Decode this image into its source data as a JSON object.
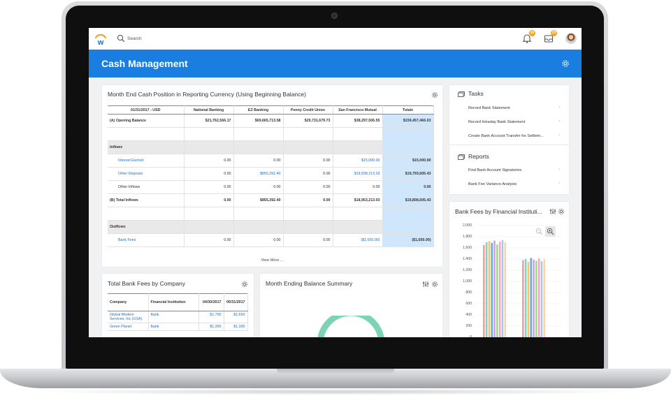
{
  "topbar": {
    "search_placeholder": "Search",
    "notifications_count": "10",
    "inbox_count": "23"
  },
  "header": {
    "title": "Cash Management"
  },
  "colors": {
    "accent": "#1a7de0",
    "total_column": "#cfe6fb",
    "link": "#1a6fd0",
    "donut": "#7dd3b6"
  },
  "cash_position": {
    "title": "Month End Cash Position in Reporting Currency (Using Beginning Balance)",
    "columns": [
      "01/31/2017 - USD",
      "National Banking",
      "EZ Banking",
      "Penny Credit Union",
      "San Francisco Mutual",
      "Totals"
    ],
    "rows": {
      "opening": {
        "label": "(A) Opening Balance",
        "values": [
          "$21,762,566.17",
          "$69,665,713.58",
          "$29,731,679.73",
          "$38,297,506.55",
          "$159,457,466.03"
        ]
      },
      "inflows_header": "Inflows",
      "interest": {
        "label": "Interest Earned",
        "values": [
          "0.00",
          "0.00",
          "0.00",
          "$15,000.00",
          "$15,000.00"
        ]
      },
      "other_deposits": {
        "label": "Other Deposits",
        "values": [
          "0.00",
          "$855,392.40",
          "0.00",
          "$18,938,213.03",
          "$19,793,605.43"
        ]
      },
      "other_inflows": {
        "label": "Other Inflows",
        "values": [
          "0.00",
          "0.00",
          "0.00",
          "0.00",
          "0.00"
        ]
      },
      "total_inflows": {
        "label": "(B) Total Inflows",
        "values": [
          "0.00",
          "$855,392.40",
          "0.00",
          "$18,953,213.03",
          "$19,808,605.43"
        ]
      },
      "outflows_header": "Outflows",
      "bank_fees": {
        "label": "Bank Fees",
        "values": [
          "0.00",
          "0.00",
          "0.00",
          "($1,650.00)",
          "($1,650.00)"
        ]
      }
    },
    "view_more": "View More ..."
  },
  "tasks": {
    "title": "Tasks",
    "items": [
      "Record Bank Statement",
      "Record Intraday Bank Statement",
      "Create Bank Account Transfer for Settlem..."
    ]
  },
  "reports": {
    "title": "Reports",
    "items": [
      "Find Bank Account Signatories",
      "Bank Fee Variance Analysis"
    ]
  },
  "fees_by_company": {
    "title": "Total Bank Fees by Company",
    "columns": [
      "Company",
      "Financial Institution",
      "04/30/2017",
      "05/31/2017"
    ],
    "rows": [
      {
        "company": "Global Modern Services, Inc (USA)",
        "institution": "Bank",
        "v1": "$1,700",
        "v2": "$1,650"
      },
      {
        "company": "Green Planet",
        "institution": "Bank",
        "v1": "$1,350",
        "v2": "$1,300"
      }
    ]
  },
  "balance_summary": {
    "title": "Month Ending Balance Summary"
  },
  "chart_data": {
    "type": "bar",
    "title": "Bank Fees by Financial Instituti...",
    "xlabel": "",
    "ylabel": "",
    "ylim": [
      0,
      2000
    ],
    "yticks": [
      "2,000",
      "1,800",
      "1,600",
      "1,400",
      "1,200",
      "1,000",
      "800",
      "600",
      "400",
      "200",
      "0"
    ],
    "grid": true,
    "series_colors": [
      "#f39c9c",
      "#7fd3c4",
      "#f7c66a",
      "#6fa8dc",
      "#c9a4e8",
      "#9fdb8a",
      "#f5a3c7",
      "#a7c7e7",
      "#ffd59e"
    ],
    "groups": [
      {
        "values": [
          1650,
          1700,
          1720,
          1690,
          1730,
          1660,
          1710,
          1740,
          1700
        ]
      },
      {
        "values": [
          1380,
          1400,
          1350,
          1420,
          1390,
          1370,
          1410,
          1360,
          1400
        ]
      }
    ]
  }
}
